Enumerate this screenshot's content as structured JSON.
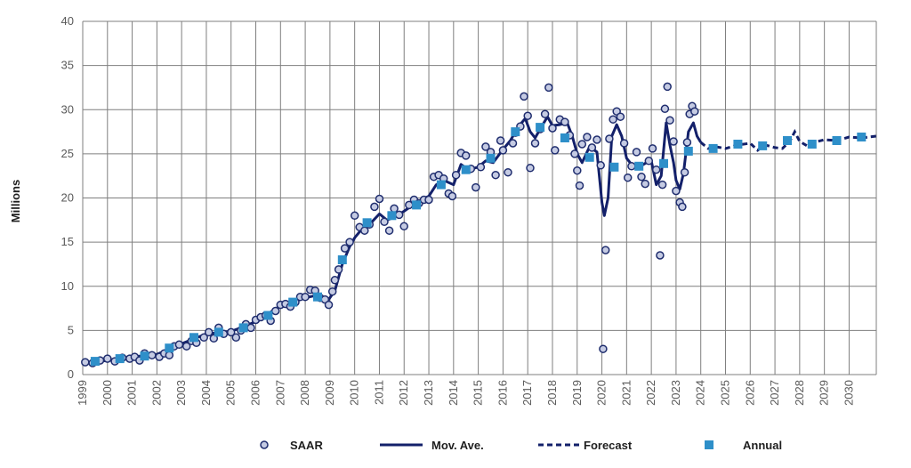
{
  "chart_data": {
    "type": "line",
    "ylabel": "Millions",
    "ylim": [
      0,
      40
    ],
    "yticks": [
      0,
      5,
      10,
      15,
      20,
      25,
      30,
      35,
      40
    ],
    "xlim": [
      1999,
      2031.1
    ],
    "xticks": [
      "1999",
      "2000",
      "2001",
      "2002",
      "2003",
      "2004",
      "2005",
      "2006",
      "2007",
      "2008",
      "2009",
      "2010",
      "2011",
      "2012",
      "2013",
      "2014",
      "2015",
      "2016",
      "2017",
      "2018",
      "2019",
      "2020",
      "2021",
      "2022",
      "2023",
      "2024",
      "2025",
      "2026",
      "2027",
      "2028",
      "2029",
      "2030"
    ],
    "grid": true,
    "legend_position": "bottom",
    "colors": {
      "saar": "#1f2d6e",
      "mov_ave": "#13206a",
      "forecast": "#13206a",
      "annual": "#2e8fc9",
      "grid": "#7f7f7f"
    },
    "series": [
      {
        "name": "SAAR",
        "style": "circle-markers",
        "points": [
          [
            1999.1,
            1.4
          ],
          [
            1999.4,
            1.3
          ],
          [
            1999.7,
            1.6
          ],
          [
            2000.0,
            1.8
          ],
          [
            2000.3,
            1.5
          ],
          [
            2000.6,
            1.9
          ],
          [
            2000.9,
            1.8
          ],
          [
            2001.1,
            2.0
          ],
          [
            2001.3,
            1.6
          ],
          [
            2001.5,
            2.4
          ],
          [
            2001.8,
            2.2
          ],
          [
            2002.1,
            2.0
          ],
          [
            2002.3,
            2.4
          ],
          [
            2002.5,
            2.2
          ],
          [
            2002.7,
            3.2
          ],
          [
            2002.9,
            3.4
          ],
          [
            2003.2,
            3.2
          ],
          [
            2003.4,
            3.8
          ],
          [
            2003.6,
            3.6
          ],
          [
            2003.9,
            4.2
          ],
          [
            2004.1,
            4.8
          ],
          [
            2004.3,
            4.1
          ],
          [
            2004.5,
            5.3
          ],
          [
            2004.7,
            4.6
          ],
          [
            2005.0,
            4.8
          ],
          [
            2005.2,
            4.2
          ],
          [
            2005.4,
            5.0
          ],
          [
            2005.6,
            5.7
          ],
          [
            2005.8,
            5.3
          ],
          [
            2006.0,
            6.2
          ],
          [
            2006.2,
            6.5
          ],
          [
            2006.4,
            6.7
          ],
          [
            2006.6,
            6.1
          ],
          [
            2006.8,
            7.2
          ],
          [
            2007.0,
            7.9
          ],
          [
            2007.2,
            8.0
          ],
          [
            2007.4,
            7.7
          ],
          [
            2007.6,
            8.2
          ],
          [
            2007.8,
            8.8
          ],
          [
            2008.0,
            8.8
          ],
          [
            2008.2,
            9.6
          ],
          [
            2008.4,
            9.5
          ],
          [
            2008.6,
            8.7
          ],
          [
            2008.8,
            8.5
          ],
          [
            2008.95,
            7.9
          ],
          [
            2009.1,
            9.4
          ],
          [
            2009.2,
            10.7
          ],
          [
            2009.35,
            11.9
          ],
          [
            2009.6,
            14.3
          ],
          [
            2009.8,
            15.0
          ],
          [
            2010.0,
            18.0
          ],
          [
            2010.2,
            16.7
          ],
          [
            2010.4,
            16.3
          ],
          [
            2010.6,
            17.0
          ],
          [
            2010.8,
            19.0
          ],
          [
            2011.0,
            19.9
          ],
          [
            2011.2,
            17.3
          ],
          [
            2011.4,
            16.3
          ],
          [
            2011.6,
            18.8
          ],
          [
            2011.8,
            18.1
          ],
          [
            2012.0,
            16.8
          ],
          [
            2012.2,
            19.2
          ],
          [
            2012.4,
            19.8
          ],
          [
            2012.6,
            19.4
          ],
          [
            2012.8,
            19.8
          ],
          [
            2013.0,
            19.8
          ],
          [
            2013.2,
            22.4
          ],
          [
            2013.4,
            22.6
          ],
          [
            2013.6,
            22.2
          ],
          [
            2013.8,
            20.5
          ],
          [
            2013.95,
            20.2
          ],
          [
            2014.1,
            22.6
          ],
          [
            2014.3,
            25.1
          ],
          [
            2014.5,
            24.8
          ],
          [
            2014.7,
            23.3
          ],
          [
            2014.9,
            21.2
          ],
          [
            2015.1,
            23.5
          ],
          [
            2015.3,
            25.8
          ],
          [
            2015.5,
            25.2
          ],
          [
            2015.7,
            22.6
          ],
          [
            2015.9,
            26.5
          ],
          [
            2016.0,
            25.4
          ],
          [
            2016.2,
            22.9
          ],
          [
            2016.4,
            26.2
          ],
          [
            2016.5,
            27.4
          ],
          [
            2016.7,
            28.1
          ],
          [
            2016.85,
            31.5
          ],
          [
            2017.0,
            29.3
          ],
          [
            2017.1,
            23.4
          ],
          [
            2017.3,
            26.2
          ],
          [
            2017.5,
            27.8
          ],
          [
            2017.7,
            29.5
          ],
          [
            2017.85,
            32.5
          ],
          [
            2018.0,
            27.9
          ],
          [
            2018.1,
            25.4
          ],
          [
            2018.3,
            28.9
          ],
          [
            2018.5,
            28.6
          ],
          [
            2018.7,
            27.1
          ],
          [
            2018.9,
            25.0
          ],
          [
            2019.0,
            23.1
          ],
          [
            2019.1,
            21.4
          ],
          [
            2019.2,
            26.1
          ],
          [
            2019.4,
            26.9
          ],
          [
            2019.6,
            25.7
          ],
          [
            2019.8,
            26.6
          ],
          [
            2019.95,
            23.7
          ],
          [
            2020.05,
            2.9
          ],
          [
            2020.15,
            14.1
          ],
          [
            2020.3,
            26.7
          ],
          [
            2020.45,
            28.9
          ],
          [
            2020.6,
            29.8
          ],
          [
            2020.75,
            29.2
          ],
          [
            2020.9,
            26.2
          ],
          [
            2021.05,
            22.3
          ],
          [
            2021.2,
            23.6
          ],
          [
            2021.4,
            25.2
          ],
          [
            2021.6,
            22.4
          ],
          [
            2021.75,
            21.6
          ],
          [
            2021.9,
            24.2
          ],
          [
            2022.05,
            25.6
          ],
          [
            2022.2,
            23.2
          ],
          [
            2022.35,
            13.5
          ],
          [
            2022.45,
            21.5
          ],
          [
            2022.55,
            30.1
          ],
          [
            2022.65,
            32.6
          ],
          [
            2022.75,
            28.8
          ],
          [
            2022.9,
            26.4
          ],
          [
            2023.0,
            20.8
          ],
          [
            2023.15,
            19.5
          ],
          [
            2023.25,
            19.0
          ],
          [
            2023.35,
            22.9
          ],
          [
            2023.45,
            26.3
          ],
          [
            2023.55,
            29.5
          ],
          [
            2023.65,
            30.4
          ],
          [
            2023.75,
            29.8
          ]
        ]
      },
      {
        "name": "Mov. Ave.",
        "style": "solid-line",
        "points": [
          [
            1999.0,
            1.3
          ],
          [
            2000.0,
            1.6
          ],
          [
            2001.0,
            2.0
          ],
          [
            2002.0,
            2.3
          ],
          [
            2003.0,
            3.5
          ],
          [
            2004.0,
            4.6
          ],
          [
            2005.0,
            4.9
          ],
          [
            2005.5,
            5.4
          ],
          [
            2006.0,
            6.0
          ],
          [
            2007.0,
            7.8
          ],
          [
            2007.5,
            8.2
          ],
          [
            2008.0,
            8.7
          ],
          [
            2008.5,
            9.0
          ],
          [
            2008.9,
            8.3
          ],
          [
            2009.2,
            9.5
          ],
          [
            2009.5,
            12.5
          ],
          [
            2009.8,
            14.5
          ],
          [
            2010.0,
            15.5
          ],
          [
            2010.3,
            16.5
          ],
          [
            2010.7,
            17.3
          ],
          [
            2011.0,
            18.2
          ],
          [
            2011.3,
            17.5
          ],
          [
            2011.6,
            17.8
          ],
          [
            2012.0,
            18.5
          ],
          [
            2012.5,
            19.5
          ],
          [
            2013.0,
            20.2
          ],
          [
            2013.3,
            21.5
          ],
          [
            2013.6,
            22.0
          ],
          [
            2014.0,
            21.5
          ],
          [
            2014.3,
            23.8
          ],
          [
            2014.6,
            23.2
          ],
          [
            2015.0,
            23.5
          ],
          [
            2015.3,
            24.2
          ],
          [
            2015.6,
            24.0
          ],
          [
            2016.0,
            25.5
          ],
          [
            2016.3,
            26.5
          ],
          [
            2016.6,
            28.0
          ],
          [
            2016.9,
            29.0
          ],
          [
            2017.1,
            27.5
          ],
          [
            2017.3,
            26.8
          ],
          [
            2017.5,
            27.8
          ],
          [
            2017.8,
            29.2
          ],
          [
            2018.0,
            28.2
          ],
          [
            2018.3,
            28.3
          ],
          [
            2018.6,
            28.5
          ],
          [
            2018.8,
            27.0
          ],
          [
            2019.0,
            25.0
          ],
          [
            2019.2,
            24.0
          ],
          [
            2019.5,
            25.8
          ],
          [
            2019.8,
            25.2
          ],
          [
            2020.0,
            19.5
          ],
          [
            2020.1,
            18.0
          ],
          [
            2020.25,
            20.0
          ],
          [
            2020.4,
            27.0
          ],
          [
            2020.6,
            28.3
          ],
          [
            2020.8,
            27.0
          ],
          [
            2021.0,
            24.5
          ],
          [
            2021.2,
            23.8
          ],
          [
            2021.5,
            23.5
          ],
          [
            2021.8,
            24.0
          ],
          [
            2022.0,
            24.2
          ],
          [
            2022.2,
            21.5
          ],
          [
            2022.4,
            22.5
          ],
          [
            2022.6,
            28.5
          ],
          [
            2022.75,
            26.0
          ],
          [
            2022.9,
            24.0
          ],
          [
            2023.0,
            22.0
          ],
          [
            2023.15,
            21.0
          ],
          [
            2023.3,
            22.8
          ],
          [
            2023.5,
            27.5
          ],
          [
            2023.7,
            28.5
          ],
          [
            2023.85,
            27.0
          ],
          [
            2024.0,
            26.3
          ]
        ]
      },
      {
        "name": "Forecast",
        "style": "dashed-line",
        "points": [
          [
            2024.0,
            26.3
          ],
          [
            2024.3,
            25.6
          ],
          [
            2024.6,
            25.8
          ],
          [
            2025.0,
            25.6
          ],
          [
            2025.5,
            26.0
          ],
          [
            2026.0,
            26.2
          ],
          [
            2026.3,
            25.4
          ],
          [
            2026.6,
            26.0
          ],
          [
            2027.0,
            25.7
          ],
          [
            2027.3,
            25.6
          ],
          [
            2027.6,
            26.4
          ],
          [
            2027.8,
            27.5
          ],
          [
            2028.0,
            26.4
          ],
          [
            2028.3,
            25.9
          ],
          [
            2028.6,
            26.3
          ],
          [
            2029.0,
            26.6
          ],
          [
            2029.5,
            26.5
          ],
          [
            2030.0,
            26.9
          ],
          [
            2030.5,
            26.8
          ],
          [
            2031.1,
            27.0
          ]
        ]
      },
      {
        "name": "Annual",
        "style": "square-markers",
        "points": [
          [
            1999.5,
            1.5
          ],
          [
            2000.5,
            1.8
          ],
          [
            2001.5,
            2.1
          ],
          [
            2002.5,
            3.0
          ],
          [
            2003.5,
            4.2
          ],
          [
            2004.5,
            4.8
          ],
          [
            2005.5,
            5.3
          ],
          [
            2006.5,
            6.7
          ],
          [
            2007.5,
            8.2
          ],
          [
            2008.5,
            8.8
          ],
          [
            2009.5,
            13.0
          ],
          [
            2010.5,
            17.2
          ],
          [
            2011.5,
            18.0
          ],
          [
            2012.5,
            19.2
          ],
          [
            2013.5,
            21.5
          ],
          [
            2014.5,
            23.2
          ],
          [
            2015.5,
            24.5
          ],
          [
            2016.5,
            27.5
          ],
          [
            2017.5,
            28.0
          ],
          [
            2018.5,
            26.8
          ],
          [
            2019.5,
            24.6
          ],
          [
            2020.5,
            23.5
          ],
          [
            2021.5,
            23.6
          ],
          [
            2022.5,
            23.9
          ],
          [
            2023.5,
            25.3
          ],
          [
            2024.5,
            25.6
          ],
          [
            2025.5,
            26.1
          ],
          [
            2026.5,
            25.9
          ],
          [
            2027.5,
            26.5
          ],
          [
            2028.5,
            26.1
          ],
          [
            2029.5,
            26.5
          ],
          [
            2030.5,
            26.9
          ]
        ]
      }
    ]
  }
}
